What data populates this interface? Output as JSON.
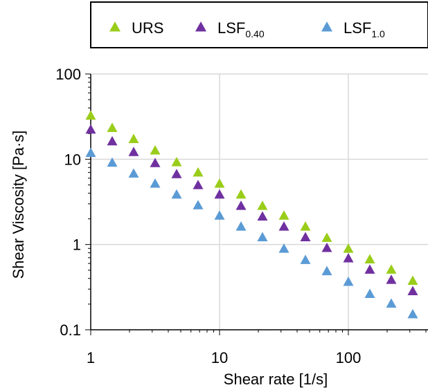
{
  "chart_data": {
    "type": "scatter",
    "xscale": "log",
    "yscale": "log",
    "xlabel": "Shear rate [1/s]",
    "ylabel": "Shear Viscosity [Pa·s]",
    "xlim": [
      1,
      470
    ],
    "ylim": [
      0.1,
      100
    ],
    "x_ticks": [
      {
        "value": 1,
        "label": "1"
      },
      {
        "value": 10,
        "label": "10"
      },
      {
        "value": 100,
        "label": "100"
      }
    ],
    "y_ticks": [
      {
        "value": 0.1,
        "label": "0.1"
      },
      {
        "value": 1,
        "label": "1"
      },
      {
        "value": 10,
        "label": "10"
      },
      {
        "value": 100,
        "label": "100"
      }
    ],
    "grid": true,
    "legend": {
      "position": "top",
      "entries": [
        {
          "base": "URS",
          "sub": ""
        },
        {
          "base": "LSF",
          "sub": "0.40"
        },
        {
          "base": "LSF",
          "sub": "1.0"
        }
      ]
    },
    "series": [
      {
        "name": "URS",
        "color": "#9acd1a",
        "marker": "triangle",
        "x": [
          1,
          1.468,
          2.154,
          3.162,
          4.642,
          6.813,
          10,
          14.68,
          21.54,
          31.62,
          46.42,
          68.13,
          100,
          146.8,
          215.4,
          316.2
        ],
        "y": [
          32,
          23,
          17,
          12.5,
          9.1,
          6.9,
          5.1,
          3.8,
          2.8,
          2.15,
          1.6,
          1.18,
          0.88,
          0.66,
          0.5,
          0.37
        ]
      },
      {
        "name": "LSF0.40",
        "color": "#7030a0",
        "marker": "triangle",
        "x": [
          1,
          1.468,
          2.154,
          3.162,
          4.642,
          6.813,
          10,
          14.68,
          21.54,
          31.62,
          46.42,
          68.13,
          100,
          146.8,
          215.4,
          316.2
        ],
        "y": [
          22,
          16,
          12,
          8.9,
          6.6,
          4.9,
          3.8,
          2.8,
          2.1,
          1.6,
          1.2,
          0.9,
          0.68,
          0.5,
          0.38,
          0.28
        ]
      },
      {
        "name": "LSF1.0",
        "color": "#5b9bd5",
        "marker": "triangle",
        "x": [
          1,
          1.468,
          2.154,
          3.162,
          4.642,
          6.813,
          10,
          14.68,
          21.54,
          31.62,
          46.42,
          68.13,
          100,
          146.8,
          215.4,
          316.2
        ],
        "y": [
          11.7,
          9.0,
          6.7,
          5.1,
          3.8,
          2.85,
          2.15,
          1.6,
          1.2,
          0.88,
          0.65,
          0.48,
          0.36,
          0.26,
          0.2,
          0.15
        ]
      }
    ]
  }
}
